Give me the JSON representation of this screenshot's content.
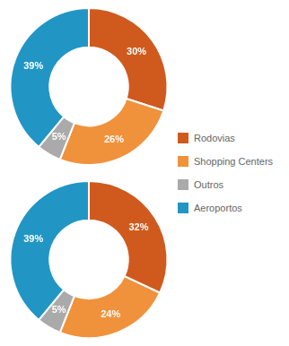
{
  "chart_data": [
    {
      "type": "doughnut",
      "categories": [
        "Rodovias",
        "Shopping Centers",
        "Outros",
        "Aeroportos"
      ],
      "values": [
        30,
        26,
        5,
        39
      ],
      "value_labels": [
        "30%",
        "26%",
        "5%",
        "39%"
      ],
      "colors": [
        "#D05A1E",
        "#F0923B",
        "#AAAAAA",
        "#2196C4"
      ],
      "data_labels": true,
      "legend": "right"
    },
    {
      "type": "doughnut",
      "categories": [
        "Rodovias",
        "Shopping Centers",
        "Outros",
        "Aeroportos"
      ],
      "values": [
        32,
        24,
        5,
        39
      ],
      "value_labels": [
        "32%",
        "24%",
        "5%",
        "39%"
      ],
      "colors": [
        "#D05A1E",
        "#F0923B",
        "#AAAAAA",
        "#2196C4"
      ],
      "data_labels": true,
      "legend": "right"
    }
  ]
}
